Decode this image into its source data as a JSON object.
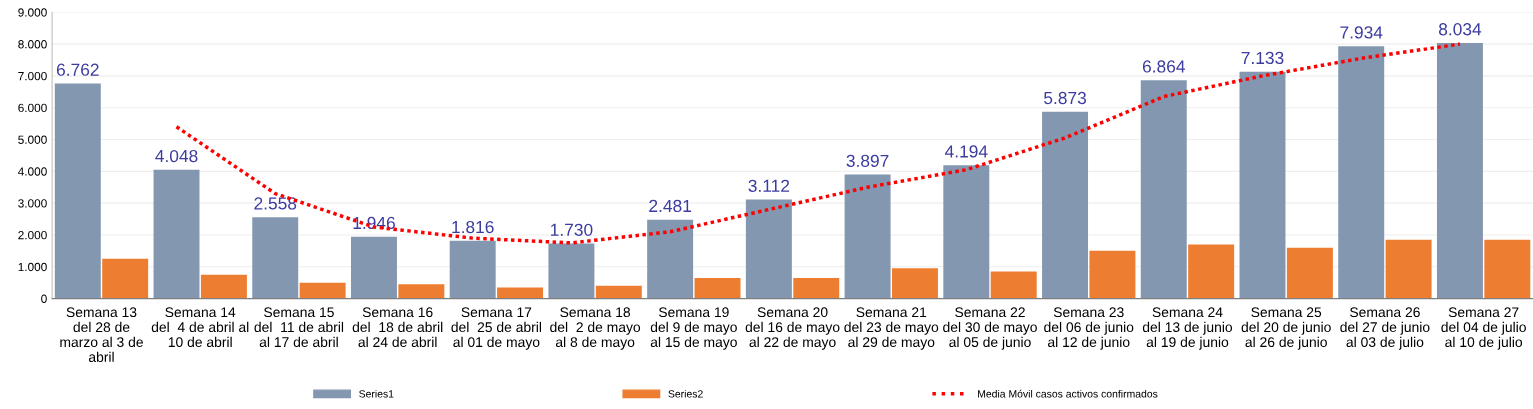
{
  "chart_data": {
    "type": "bar",
    "categories": [
      "Semana 13\ndel 28 de\nmarzo al 3 de\nabril",
      "Semana 14\ndel  4 de abril al\n10 de abril",
      "Semana 15\ndel  11 de abril\nal 17 de abril",
      "Semana 16\ndel  18 de abril\nal 24 de abril",
      "Semana 17\ndel  25 de abril\nal 01 de mayo",
      "Semana 18\ndel  2 de mayo\nal 8 de mayo",
      "Semana 19\ndel 9 de mayo\nal 15 de mayo",
      "Semana 20\ndel 16 de mayo\nal 22 de mayo",
      "Semana 21\ndel 23 de mayo\nal 29 de mayo",
      "Semana 22\ndel 30 de mayo\nal 05 de junio",
      "Semana 23\ndel 06 de junio\nal 12 de junio",
      "Semana 24\ndel 13 de junio\nal 19 de junio",
      "Semana 25\ndel 20 de junio\nal 26 de junio",
      "Semana 26\ndel 27 de junio\nal 03 de julio",
      "Semana 27\ndel 04 de julio\nal 10 de julio"
    ],
    "series": [
      {
        "name": "Series1",
        "color": "#8497b0",
        "values": [
          6762,
          4048,
          2558,
          1946,
          1816,
          1730,
          2481,
          3112,
          3897,
          4194,
          5873,
          6864,
          7133,
          7934,
          8034
        ],
        "value_labels": [
          "6.762",
          "4.048",
          "2.558",
          "1.946",
          "1.816",
          "1.730",
          "2.481",
          "3.112",
          "3.897",
          "4.194",
          "5.873",
          "6.864",
          "7.133",
          "7.934",
          "8.034"
        ]
      },
      {
        "name": "Series2",
        "color": "#ed7d31",
        "values": [
          1250,
          750,
          500,
          450,
          350,
          400,
          650,
          650,
          950,
          850,
          1500,
          1700,
          1600,
          1850,
          1850
        ]
      },
      {
        "name": "Media Móvil casos activos confirmados",
        "type": "line",
        "color": "#ff0000",
        "line_style": "dotted",
        "values": [
          null,
          5400,
          3300,
          2250,
          1900,
          1750,
          2100,
          2800,
          3500,
          4050,
          5050,
          6350,
          7000,
          7550,
          8000
        ]
      }
    ],
    "ylim": [
      0,
      9000
    ],
    "yticks": [
      0,
      {
        "value": 1000,
        "label": "1.000"
      },
      {
        "value": 2000,
        "label": "2.000"
      },
      {
        "value": 3000,
        "label": "3.000"
      },
      {
        "value": 4000,
        "label": "4.000"
      },
      {
        "value": 5000,
        "label": "5.000"
      },
      {
        "value": 6000,
        "label": "6.000"
      },
      {
        "value": 7000,
        "label": "7.000"
      },
      {
        "value": 8000,
        "label": "8.000"
      },
      {
        "value": 9000,
        "label": "9.000"
      }
    ],
    "grid": "y",
    "legend": "bottom"
  }
}
